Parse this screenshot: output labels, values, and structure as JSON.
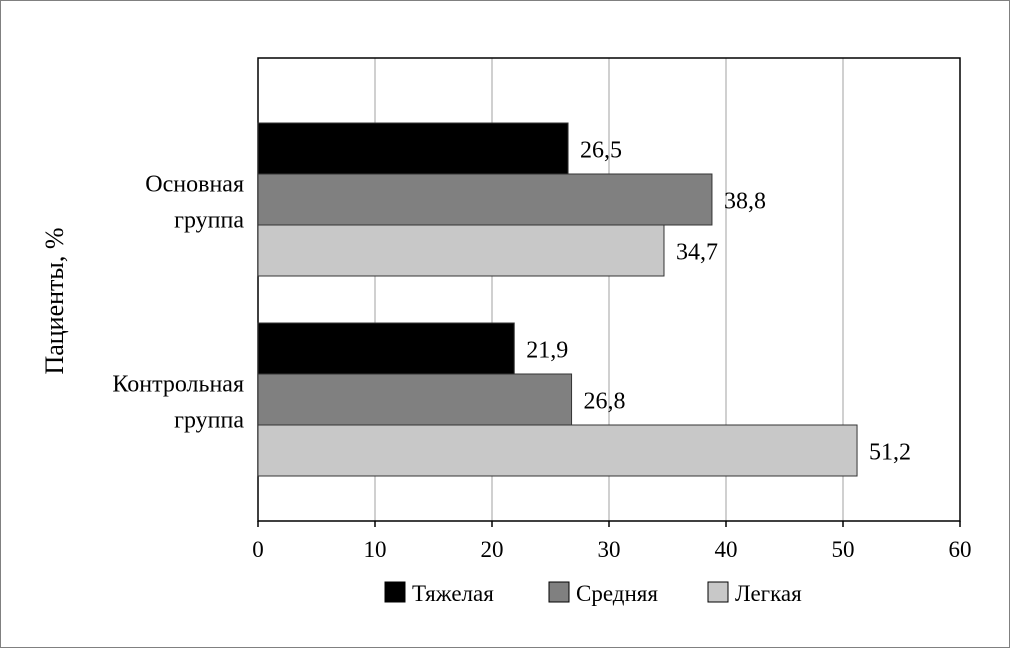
{
  "chart_data": {
    "type": "bar",
    "orientation": "horizontal",
    "ylabel": "Пациенты, %",
    "categories": [
      [
        "Основная",
        "группа"
      ],
      [
        "Контрольная",
        "группа"
      ]
    ],
    "series": [
      {
        "name": "Тяжелая",
        "color": "#000000",
        "values": [
          26.5,
          21.9
        ],
        "labels": [
          "26,5",
          "21,9"
        ]
      },
      {
        "name": "Средняя",
        "color": "#808080",
        "values": [
          38.8,
          26.8
        ],
        "labels": [
          "38,8",
          "26,8"
        ]
      },
      {
        "name": "Легкая",
        "color": "#c8c8c8",
        "values": [
          34.7,
          51.2
        ],
        "labels": [
          "34,7",
          "51,2"
        ]
      }
    ],
    "xlim": [
      0,
      60
    ],
    "xticks": [
      0,
      10,
      20,
      30,
      40,
      50,
      60
    ],
    "grid": true,
    "legend_position": "bottom"
  }
}
